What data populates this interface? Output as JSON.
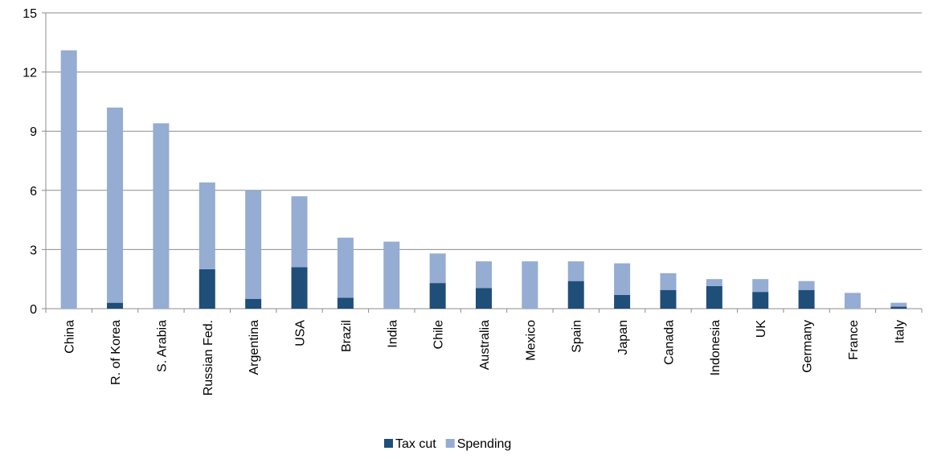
{
  "chart_data": {
    "type": "bar",
    "stacked": true,
    "title": "",
    "xlabel": "",
    "ylabel": "",
    "ylim": [
      0,
      15
    ],
    "yticks": [
      0,
      3,
      6,
      9,
      12,
      15
    ],
    "grid": true,
    "legend_position": "bottom",
    "categories": [
      "China",
      "R. of Korea",
      "S. Arabia",
      "Russian Fed.",
      "Argentina",
      "USA",
      "Brazil",
      "India",
      "Chile",
      "Australia",
      "Mexico",
      "Spain",
      "Japan",
      "Canada",
      "Indonesia",
      "UK",
      "Germany",
      "France",
      "Italy"
    ],
    "series": [
      {
        "name": "Tax cut",
        "color": "#1f4e79",
        "values": [
          0,
          0.3,
          0,
          2.0,
          0.5,
          2.1,
          0.55,
          0,
          1.3,
          1.05,
          0,
          1.4,
          0.7,
          0.95,
          1.15,
          0.85,
          0.95,
          0,
          0.1
        ]
      },
      {
        "name": "Spending",
        "color": "#95acd3",
        "values": [
          13.1,
          9.9,
          9.4,
          4.4,
          5.5,
          3.6,
          3.05,
          3.4,
          1.5,
          1.35,
          2.4,
          1.0,
          1.6,
          0.85,
          0.35,
          0.65,
          0.45,
          0.8,
          0.2
        ]
      }
    ]
  }
}
